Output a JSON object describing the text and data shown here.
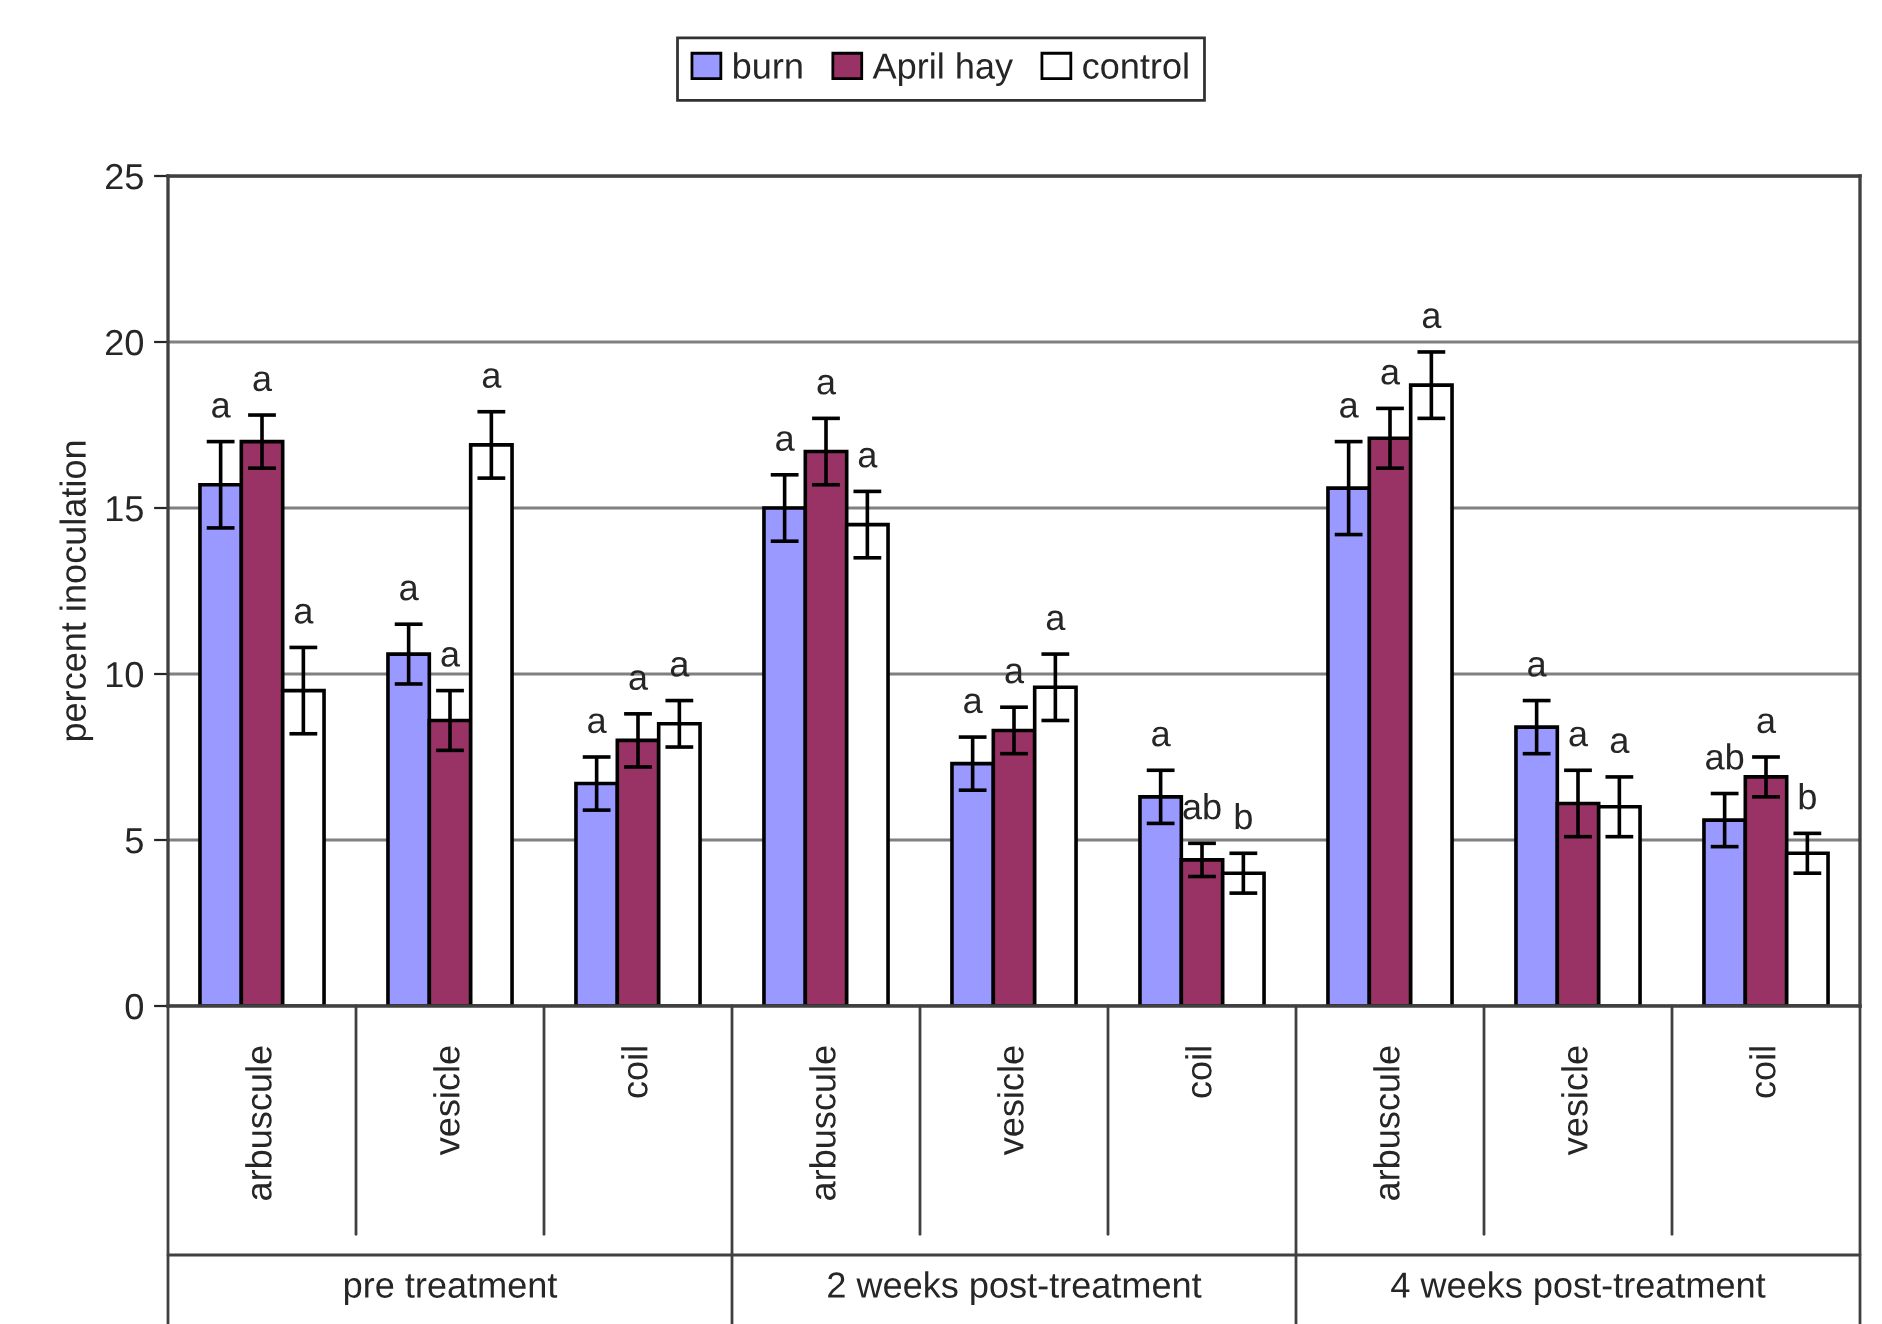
{
  "chart_data": {
    "type": "bar",
    "ylabel": "percent inoculation",
    "categories": [
      "arbuscule",
      "vesicle",
      "coil",
      "arbuscule",
      "vesicle",
      "coil",
      "arbuscule",
      "vesicle",
      "coil"
    ],
    "annotations": [
      "pre treatment",
      "2 weeks post-treatment",
      "4 weeks post-treatment"
    ],
    "series": [
      {
        "name": "burn",
        "color": "#9999ff",
        "values": [
          15.7,
          10.6,
          6.7,
          15.0,
          7.3,
          6.3,
          15.6,
          8.4,
          5.6
        ],
        "errors": [
          1.3,
          0.9,
          0.8,
          1.0,
          0.8,
          0.8,
          1.4,
          0.8,
          0.8
        ],
        "value_labels": [
          "a",
          "a",
          "a",
          "a",
          "a",
          "a",
          "a",
          "a",
          "ab"
        ]
      },
      {
        "name": "April hay",
        "color": "#993366",
        "values": [
          17.0,
          8.6,
          8.0,
          16.7,
          8.3,
          4.4,
          17.1,
          6.1,
          6.9
        ],
        "errors": [
          0.8,
          0.9,
          0.8,
          1.0,
          0.7,
          0.5,
          0.9,
          1.0,
          0.6
        ],
        "value_labels": [
          "a",
          "a",
          "a",
          "a",
          "a",
          "ab",
          "a",
          "a",
          "a"
        ]
      },
      {
        "name": "control",
        "color": "#ffffff",
        "values": [
          9.5,
          16.9,
          8.5,
          14.5,
          9.6,
          4.0,
          18.7,
          6.0,
          4.6
        ],
        "errors": [
          1.3,
          1.0,
          0.7,
          1.0,
          1.0,
          0.6,
          1.0,
          0.9,
          0.6
        ],
        "value_labels": [
          "a",
          "a",
          "a",
          "a",
          "a",
          "b",
          "a",
          "a",
          "b"
        ]
      }
    ],
    "ylim": [
      0,
      25
    ],
    "yticks": [
      0,
      5,
      10,
      15,
      20,
      25
    ],
    "grid": "y",
    "legend": "top"
  }
}
